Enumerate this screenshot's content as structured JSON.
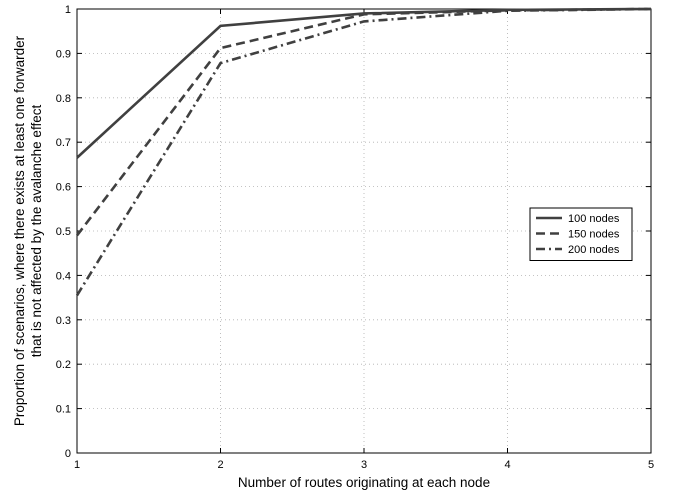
{
  "chart_data": {
    "type": "line",
    "title": "",
    "xlabel": "Number of routes originating at each node",
    "ylabel_lines": [
      "Proportion of scenarios, where there exists at least one forwarder",
      "that is not affected by the avalanche effect"
    ],
    "x": [
      1,
      2,
      3,
      4,
      5
    ],
    "xlim": [
      1,
      5
    ],
    "ylim": [
      0,
      1
    ],
    "xticks": [
      "1",
      "2",
      "3",
      "4",
      "5"
    ],
    "yticks": [
      "0",
      "0.1",
      "0.2",
      "0.3",
      "0.4",
      "0.5",
      "0.6",
      "0.7",
      "0.8",
      "0.9",
      "1"
    ],
    "grid": true,
    "legend_position": "right",
    "series": [
      {
        "name": "100 nodes",
        "values": [
          0.665,
          0.962,
          0.99,
          0.998,
          1.0
        ],
        "dash": "solid",
        "color": "#404040"
      },
      {
        "name": "150 nodes",
        "values": [
          0.49,
          0.912,
          0.988,
          0.997,
          1.0
        ],
        "dash": "dashed",
        "color": "#404040"
      },
      {
        "name": "200 nodes",
        "values": [
          0.355,
          0.878,
          0.972,
          0.996,
          1.0
        ],
        "dash": "dashdot",
        "color": "#404040"
      }
    ]
  }
}
